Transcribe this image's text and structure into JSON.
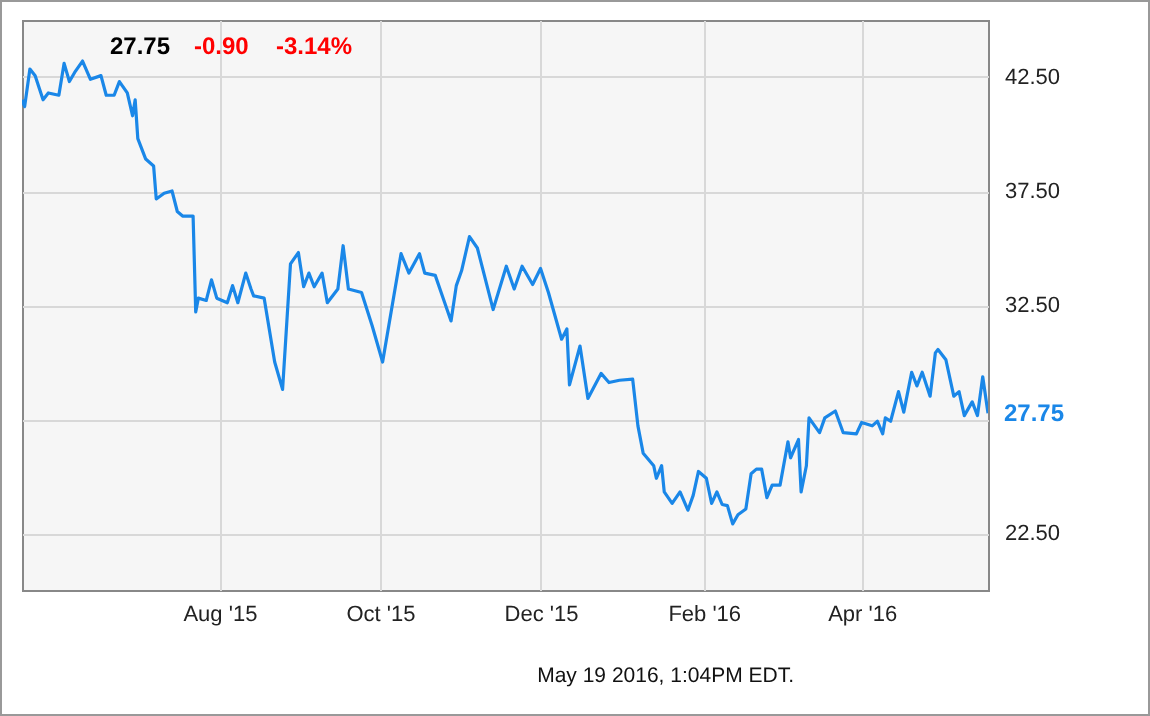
{
  "chart_data": {
    "type": "line",
    "color": "#1a87e8",
    "grid": true,
    "xlim": [
      "2015-05-18",
      "2016-05-19"
    ],
    "xticks": [
      {
        "value": "2015-08-01",
        "label": "Aug '15"
      },
      {
        "value": "2015-10-01",
        "label": "Oct '15"
      },
      {
        "value": "2015-12-01",
        "label": "Dec '15"
      },
      {
        "value": "2016-02-01",
        "label": "Feb '16"
      },
      {
        "value": "2016-04-01",
        "label": "Apr '16"
      }
    ],
    "ylim": [
      20,
      45
    ],
    "yticks": [
      {
        "value": 22.5,
        "label": "22.50"
      },
      {
        "value": 27.5,
        "label": null
      },
      {
        "value": 32.5,
        "label": "32.50"
      },
      {
        "value": 37.5,
        "label": "37.50"
      },
      {
        "value": 42.5,
        "label": "42.50"
      }
    ],
    "annotations": [
      "27.75",
      "-0.90",
      "-3.14%",
      "May 19 2016, 1:04PM EDT.",
      {
        "text": "27.75",
        "x": "2016-05-19",
        "y": 27.75
      }
    ],
    "x": [
      "2015-05-18",
      "2015-05-19",
      "2015-05-21",
      "2015-05-23",
      "2015-05-26",
      "2015-05-28",
      "2015-06-01",
      "2015-06-03",
      "2015-06-05",
      "2015-06-07",
      "2015-06-10",
      "2015-06-13",
      "2015-06-17",
      "2015-06-19",
      "2015-06-22",
      "2015-06-24",
      "2015-06-27",
      "2015-06-29",
      "2015-06-30",
      "2015-07-01",
      "2015-07-04",
      "2015-07-07",
      "2015-07-08",
      "2015-07-11",
      "2015-07-14",
      "2015-07-16",
      "2015-07-18",
      "2015-07-22",
      "2015-07-23",
      "2015-07-24",
      "2015-07-27",
      "2015-07-29",
      "2015-07-31",
      "2015-08-04",
      "2015-08-06",
      "2015-08-08",
      "2015-08-11",
      "2015-08-13",
      "2015-08-14",
      "2015-08-18",
      "2015-08-22",
      "2015-08-25",
      "2015-08-28",
      "2015-08-31",
      "2015-09-02",
      "2015-09-04",
      "2015-09-06",
      "2015-09-09",
      "2015-09-11",
      "2015-09-15",
      "2015-09-17",
      "2015-09-19",
      "2015-09-24",
      "2015-09-28",
      "2015-10-02",
      "2015-10-09",
      "2015-10-12",
      "2015-10-16",
      "2015-10-18",
      "2015-10-22",
      "2015-10-25",
      "2015-10-28",
      "2015-10-30",
      "2015-11-01",
      "2015-11-04",
      "2015-11-07",
      "2015-11-13",
      "2015-11-18",
      "2015-11-21",
      "2015-11-24",
      "2015-11-28",
      "2015-12-01",
      "2015-12-04",
      "2015-12-09",
      "2015-12-11",
      "2015-12-12",
      "2015-12-16",
      "2015-12-19",
      "2015-12-24",
      "2015-12-27",
      "2015-12-31",
      "2016-01-05",
      "2016-01-07",
      "2016-01-09",
      "2016-01-13",
      "2016-01-14",
      "2016-01-16",
      "2016-01-17",
      "2016-01-20",
      "2016-01-23",
      "2016-01-26",
      "2016-01-28",
      "2016-01-30",
      "2016-02-02",
      "2016-02-04",
      "2016-02-06",
      "2016-02-08",
      "2016-02-10",
      "2016-02-12",
      "2016-02-14",
      "2016-02-17",
      "2016-02-19",
      "2016-02-21",
      "2016-02-23",
      "2016-02-25",
      "2016-02-27",
      "2016-03-01",
      "2016-03-04",
      "2016-03-05",
      "2016-03-08",
      "2016-03-09",
      "2016-03-11",
      "2016-03-12",
      "2016-03-16",
      "2016-03-18",
      "2016-03-22",
      "2016-03-25",
      "2016-03-30",
      "2016-04-01",
      "2016-04-05",
      "2016-04-07",
      "2016-04-09",
      "2016-04-10",
      "2016-04-12",
      "2016-04-15",
      "2016-04-17",
      "2016-04-20",
      "2016-04-22",
      "2016-04-24",
      "2016-04-27",
      "2016-04-29",
      "2016-04-30",
      "2016-05-03",
      "2016-05-06",
      "2016-05-08",
      "2016-05-10",
      "2016-05-13",
      "2016-05-15",
      "2016-05-17",
      "2016-05-19"
    ],
    "values": [
      41.5,
      41.2,
      42.85,
      42.56,
      41.5,
      41.8,
      41.7,
      43.1,
      42.3,
      42.7,
      43.2,
      42.4,
      42.56,
      41.7,
      41.7,
      42.3,
      41.8,
      40.8,
      41.5,
      39.8,
      38.9,
      38.6,
      37.15,
      37.4,
      37.5,
      36.6,
      36.4,
      36.4,
      32.2,
      32.8,
      32.7,
      33.6,
      32.8,
      32.6,
      33.35,
      32.6,
      33.9,
      33.2,
      32.9,
      32.8,
      30.0,
      28.8,
      34.3,
      34.8,
      33.3,
      33.9,
      33.3,
      33.9,
      32.6,
      33.2,
      35.1,
      33.2,
      33.05,
      31.6,
      30.0,
      34.75,
      33.9,
      34.75,
      33.9,
      33.8,
      32.8,
      31.8,
      33.35,
      34.0,
      35.5,
      35.0,
      32.3,
      34.2,
      33.2,
      34.2,
      33.4,
      34.1,
      33.05,
      31.0,
      31.45,
      29.0,
      30.7,
      28.4,
      29.5,
      29.1,
      29.2,
      29.25,
      27.2,
      26.0,
      25.45,
      24.9,
      25.45,
      24.3,
      23.8,
      24.3,
      23.5,
      24.15,
      25.2,
      24.9,
      23.8,
      24.3,
      23.75,
      23.7,
      22.9,
      23.3,
      23.55,
      25.1,
      25.3,
      25.3,
      24.05,
      24.6,
      24.6,
      26.5,
      25.8,
      26.6,
      24.3,
      25.45,
      27.55,
      26.9,
      27.55,
      27.85,
      26.9,
      26.85,
      27.35,
      27.2,
      27.4,
      26.85,
      27.55,
      27.4,
      28.7,
      27.8,
      29.55,
      28.95,
      29.55,
      28.5,
      30.4,
      30.55,
      30.1,
      28.5,
      28.7,
      27.65,
      28.25,
      27.65,
      29.35,
      27.75
    ]
  }
}
